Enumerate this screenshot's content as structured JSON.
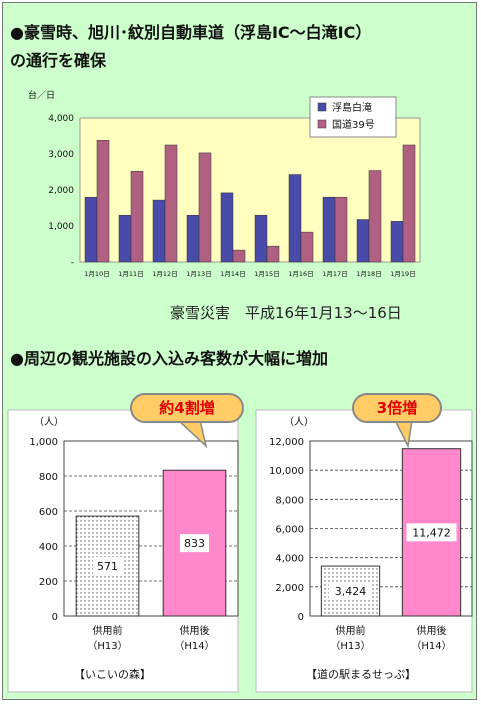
{
  "heading1": {
    "line1": "●豪雪時、旭川･紋別自動車道（浮島IC～白滝IC）",
    "line2": "の通行を確保"
  },
  "caption": "豪雪災害　平成16年1月13～16日",
  "heading2": "●周辺の観光施設の入込み客数が大幅に増加",
  "callout_left": "約4割増",
  "callout_right": "3倍増",
  "left_footer": "【いこいの森】",
  "right_footer": "【道の駅まるせっぷ】",
  "colors": {
    "bg": "#ccffcc",
    "series1": "#4a4aa8",
    "series2": "#b06080",
    "plot_bg": "#ffffc0",
    "bar_after": "#ff88cc",
    "callout_fill": "#ffcc66"
  },
  "chart_data": [
    {
      "type": "bar",
      "ylabel": "台／日",
      "ylim": [
        0,
        4000
      ],
      "yticks": [
        "4,000",
        "3,000",
        "2,000",
        "1,000",
        "-"
      ],
      "categories": [
        "1月10日",
        "1月11日",
        "1月12日",
        "1月13日",
        "1月14日",
        "1月15日",
        "1月16日",
        "1月17日",
        "1月18日",
        "1月19日"
      ],
      "series": [
        {
          "name": "浮島白滝",
          "values": [
            1800,
            1300,
            1720,
            1300,
            1920,
            1300,
            2430,
            1800,
            1180,
            1130
          ]
        },
        {
          "name": "国道39号",
          "values": [
            3380,
            2520,
            3250,
            3030,
            330,
            440,
            830,
            1800,
            2540,
            3250
          ]
        }
      ],
      "legend": "top-right",
      "grid": false
    },
    {
      "type": "bar",
      "ylabel": "（人）",
      "ylim": [
        0,
        1000
      ],
      "yticks": [
        "1,000",
        "800",
        "600",
        "400",
        "200",
        "0"
      ],
      "categories": [
        {
          "line1": "供用前",
          "line2": "（H13）"
        },
        {
          "line1": "供用後",
          "line2": "（H14）"
        }
      ],
      "values": [
        571,
        833
      ],
      "value_labels": [
        "571",
        "833"
      ],
      "grid": true
    },
    {
      "type": "bar",
      "ylabel": "（人）",
      "ylim": [
        0,
        12000
      ],
      "yticks": [
        "12,000",
        "10,000",
        "8,000",
        "6,000",
        "4,000",
        "2,000",
        "0"
      ],
      "categories": [
        {
          "line1": "供用前",
          "line2": "（H13）"
        },
        {
          "line1": "供用後",
          "line2": "（H14）"
        }
      ],
      "values": [
        3424,
        11472
      ],
      "value_labels": [
        "3,424",
        "11,472"
      ],
      "grid": true
    }
  ]
}
